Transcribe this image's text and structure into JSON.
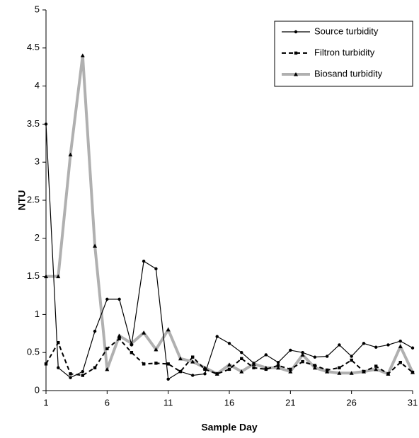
{
  "chart_data": {
    "type": "line",
    "x_label": "Sample Day",
    "y_label": "NTU",
    "x": [
      1,
      2,
      3,
      4,
      5,
      6,
      7,
      8,
      9,
      10,
      11,
      12,
      13,
      14,
      15,
      16,
      17,
      18,
      19,
      20,
      21,
      22,
      23,
      24,
      25,
      26,
      27,
      28,
      29,
      30,
      31
    ],
    "xlim": [
      1,
      31
    ],
    "xticks": [
      1,
      6,
      11,
      16,
      21,
      26,
      31
    ],
    "ylim": [
      0,
      5
    ],
    "yticks": [
      0,
      0.5,
      1,
      1.5,
      2,
      2.5,
      3,
      3.5,
      4,
      4.5,
      5
    ],
    "legend": "top-right",
    "series": [
      {
        "name": "Source turbidity",
        "color": "#000000",
        "dash": "solid",
        "marker": "circle",
        "values": [
          3.5,
          0.3,
          0.17,
          0.25,
          0.78,
          1.2,
          1.2,
          0.6,
          1.7,
          1.6,
          0.15,
          0.25,
          0.2,
          0.22,
          0.71,
          0.62,
          0.5,
          0.36,
          0.47,
          0.37,
          0.53,
          0.5,
          0.44,
          0.45,
          0.6,
          0.45,
          0.62,
          0.57,
          0.6,
          0.65,
          0.56
        ]
      },
      {
        "name": "Filtron turbidity",
        "color": "#000000",
        "dash": "dashed",
        "marker": "square",
        "values": [
          0.35,
          0.63,
          0.22,
          0.2,
          0.3,
          0.55,
          0.68,
          0.5,
          0.35,
          0.36,
          0.35,
          0.25,
          0.44,
          0.28,
          0.22,
          0.28,
          0.42,
          0.3,
          0.28,
          0.33,
          0.28,
          0.38,
          0.33,
          0.27,
          0.3,
          0.4,
          0.25,
          0.32,
          0.22,
          0.37,
          0.24
        ]
      },
      {
        "name": "Biosand turbidity",
        "color": "#b0b0b0",
        "dash": "solid",
        "marker": "triangle",
        "values": [
          1.5,
          1.5,
          3.1,
          4.4,
          1.9,
          0.28,
          0.72,
          0.62,
          0.76,
          0.54,
          0.8,
          0.42,
          0.38,
          0.3,
          0.22,
          0.34,
          0.25,
          0.35,
          0.3,
          0.3,
          0.25,
          0.47,
          0.3,
          0.25,
          0.23,
          0.23,
          0.25,
          0.28,
          0.22,
          0.58,
          0.24
        ]
      }
    ]
  }
}
